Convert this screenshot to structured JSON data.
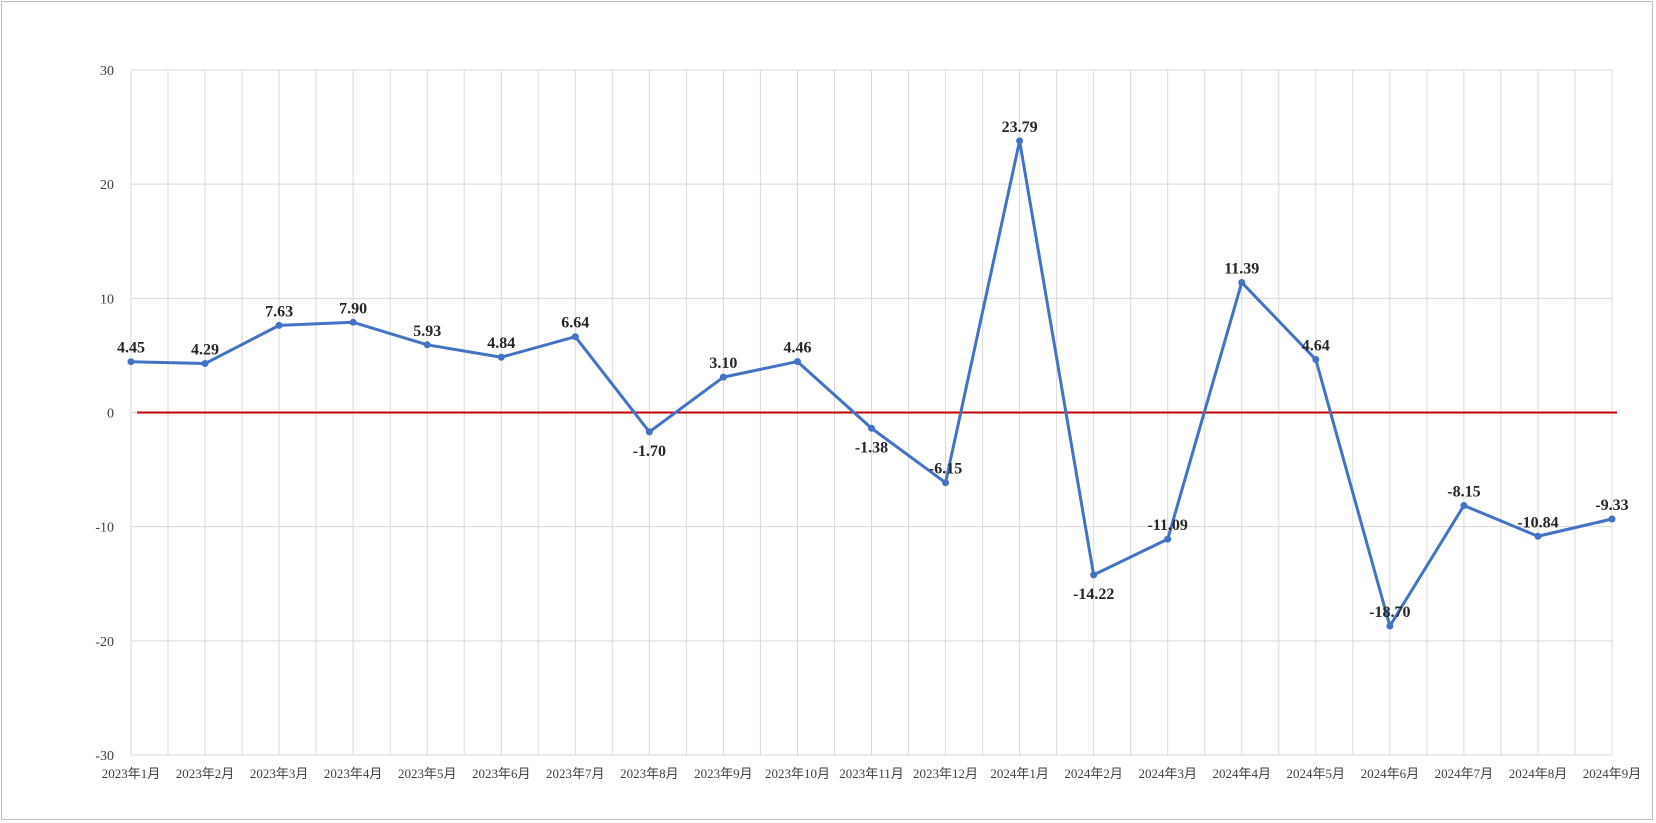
{
  "chart_data": {
    "type": "line",
    "title": "",
    "xlabel": "",
    "ylabel": "",
    "ylim": [
      -30,
      30
    ],
    "yticks": [
      30,
      20,
      10,
      0,
      -10,
      -20,
      -30
    ],
    "grid": true,
    "legend": "none",
    "categories": [
      "2023年1月",
      "2023年2月",
      "2023年3月",
      "2023年4月",
      "2023年5月",
      "2023年6月",
      "2023年7月",
      "2023年8月",
      "2023年9月",
      "2023年10月",
      "2023年11月",
      "2023年12月",
      "2024年1月",
      "2024年2月",
      "2024年3月",
      "2024年4月",
      "2024年5月",
      "2024年6月",
      "2024年7月",
      "2024年8月",
      "2024年9月"
    ],
    "series": [
      {
        "values": [
          4.45,
          4.29,
          7.63,
          7.9,
          5.93,
          4.84,
          6.64,
          -1.7,
          3.1,
          4.46,
          -1.38,
          -6.15,
          23.79,
          -14.22,
          -11.09,
          11.39,
          4.64,
          -18.7,
          -8.15,
          -10.84,
          -9.33
        ],
        "labels": [
          "4.45",
          "4.29",
          "7.63",
          "7.90",
          "5.93",
          "4.84",
          "6.64",
          "-1.70",
          "3.10",
          "4.46",
          "-1.38",
          "-6.15",
          "23.79",
          "-14.22",
          "-11.09",
          "11.39",
          "4.64",
          "-18.70",
          "-8.15",
          "-10.84",
          "-9.33"
        ],
        "label_position": [
          "above",
          "above",
          "above",
          "above",
          "above",
          "above",
          "above",
          "below",
          "above",
          "above",
          "below",
          "above",
          "above",
          "below",
          "above",
          "above",
          "above",
          "above",
          "above",
          "above",
          "above"
        ],
        "color": "#4472c4"
      }
    ],
    "reference_line": {
      "y": 0,
      "color": "#c00000"
    },
    "colors": {
      "grid": "#d9d9d9",
      "axis": "#bfbfbf"
    }
  }
}
